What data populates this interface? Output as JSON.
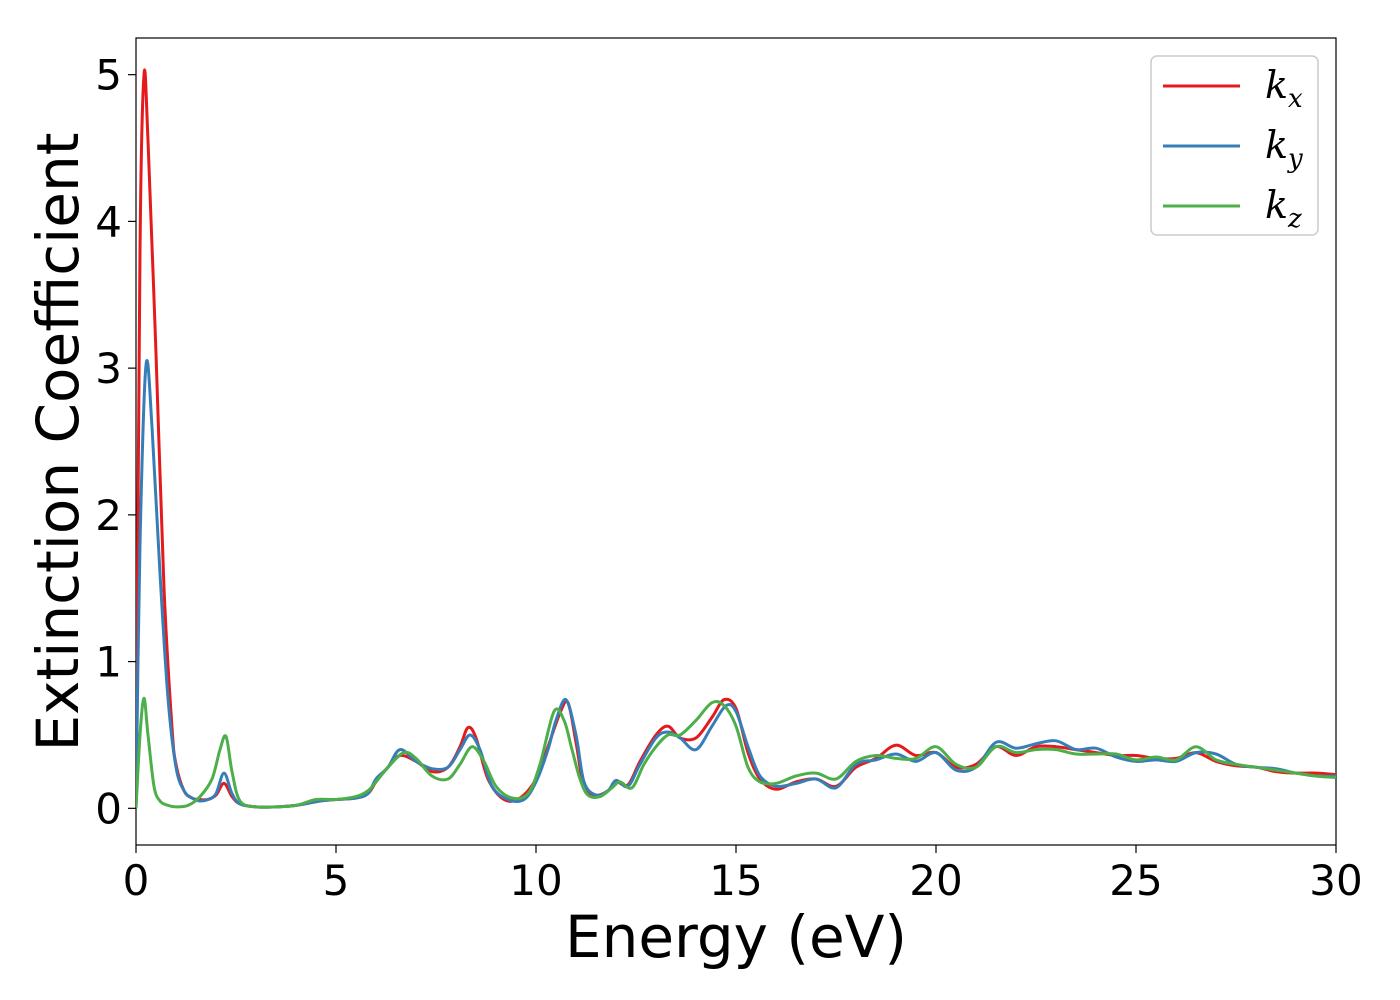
{
  "chart_data": {
    "type": "line",
    "title": "",
    "xlabel": "Energy (eV)",
    "ylabel": "Extinction Coefficient",
    "xlim": [
      0,
      30
    ],
    "ylim": [
      -0.25,
      5.25
    ],
    "xticks": [
      0,
      5,
      10,
      15,
      20,
      25,
      30
    ],
    "yticks": [
      0,
      1,
      2,
      3,
      4,
      5
    ],
    "grid": false,
    "legend_position": "top-right",
    "series": [
      {
        "name": "k",
        "subscript": "x",
        "color": "#e41a1c",
        "x": [
          0,
          0.1,
          0.2,
          0.3,
          0.5,
          0.7,
          0.9,
          1.0,
          1.2,
          1.4,
          1.6,
          1.8,
          2.0,
          2.2,
          2.4,
          2.6,
          3.0,
          3.5,
          4.0,
          4.6,
          5.0,
          5.5,
          5.8,
          6.0,
          6.3,
          6.6,
          7.0,
          7.4,
          7.8,
          8.1,
          8.3,
          8.5,
          8.8,
          9.2,
          9.6,
          10.0,
          10.3,
          10.6,
          10.8,
          11.0,
          11.2,
          11.5,
          11.8,
          12.0,
          12.3,
          12.6,
          13.0,
          13.3,
          13.6,
          14.0,
          14.4,
          14.7,
          15.0,
          15.3,
          15.6,
          16.0,
          16.5,
          17.0,
          17.5,
          18.0,
          18.5,
          19.0,
          19.5,
          20.0,
          20.5,
          21.0,
          21.5,
          22.0,
          22.5,
          23.0,
          23.5,
          24.0,
          24.5,
          25.0,
          25.5,
          26.0,
          26.5,
          27.0,
          27.5,
          28.0,
          28.5,
          29.0,
          29.5,
          30.0
        ],
        "y": [
          0.0,
          3.8,
          5.0,
          4.55,
          3.1,
          1.5,
          0.55,
          0.3,
          0.12,
          0.07,
          0.06,
          0.06,
          0.09,
          0.17,
          0.08,
          0.03,
          0.01,
          0.01,
          0.02,
          0.05,
          0.06,
          0.07,
          0.1,
          0.18,
          0.28,
          0.36,
          0.32,
          0.25,
          0.28,
          0.42,
          0.55,
          0.48,
          0.2,
          0.06,
          0.07,
          0.2,
          0.42,
          0.65,
          0.72,
          0.45,
          0.15,
          0.09,
          0.12,
          0.18,
          0.16,
          0.32,
          0.5,
          0.56,
          0.48,
          0.48,
          0.62,
          0.74,
          0.68,
          0.38,
          0.2,
          0.13,
          0.18,
          0.2,
          0.15,
          0.28,
          0.34,
          0.43,
          0.36,
          0.38,
          0.28,
          0.3,
          0.42,
          0.36,
          0.42,
          0.42,
          0.4,
          0.38,
          0.36,
          0.36,
          0.34,
          0.34,
          0.38,
          0.32,
          0.29,
          0.28,
          0.25,
          0.24,
          0.24,
          0.23
        ]
      },
      {
        "name": "k",
        "subscript": "y",
        "color": "#377eb8",
        "x": [
          0,
          0.1,
          0.25,
          0.4,
          0.6,
          0.8,
          1.0,
          1.2,
          1.4,
          1.6,
          1.8,
          2.0,
          2.2,
          2.4,
          2.6,
          3.0,
          3.5,
          4.0,
          4.6,
          5.0,
          5.5,
          5.8,
          6.0,
          6.3,
          6.6,
          7.0,
          7.4,
          7.8,
          8.1,
          8.35,
          8.6,
          8.9,
          9.3,
          9.7,
          10.0,
          10.3,
          10.5,
          10.75,
          11.0,
          11.2,
          11.5,
          11.8,
          12.0,
          12.3,
          12.6,
          13.0,
          13.3,
          13.6,
          14.0,
          14.4,
          14.75,
          15.0,
          15.3,
          15.6,
          16.0,
          16.5,
          17.0,
          17.5,
          18.0,
          18.5,
          19.0,
          19.5,
          20.0,
          20.5,
          21.0,
          21.5,
          22.0,
          22.5,
          23.0,
          23.5,
          24.0,
          24.5,
          25.0,
          25.5,
          26.0,
          26.5,
          27.0,
          27.5,
          28.0,
          28.5,
          29.0,
          29.5,
          30.0
        ],
        "y": [
          0.0,
          1.8,
          3.02,
          2.6,
          1.6,
          0.75,
          0.28,
          0.12,
          0.07,
          0.05,
          0.06,
          0.1,
          0.24,
          0.1,
          0.03,
          0.01,
          0.01,
          0.02,
          0.05,
          0.06,
          0.07,
          0.1,
          0.2,
          0.28,
          0.4,
          0.32,
          0.27,
          0.28,
          0.4,
          0.5,
          0.4,
          0.15,
          0.06,
          0.06,
          0.18,
          0.4,
          0.6,
          0.74,
          0.5,
          0.18,
          0.09,
          0.12,
          0.19,
          0.15,
          0.3,
          0.48,
          0.52,
          0.48,
          0.4,
          0.56,
          0.7,
          0.66,
          0.42,
          0.22,
          0.15,
          0.17,
          0.2,
          0.14,
          0.3,
          0.33,
          0.37,
          0.32,
          0.38,
          0.26,
          0.28,
          0.45,
          0.41,
          0.44,
          0.46,
          0.4,
          0.41,
          0.35,
          0.32,
          0.33,
          0.32,
          0.38,
          0.37,
          0.3,
          0.28,
          0.27,
          0.24,
          0.22,
          0.22
        ]
      },
      {
        "name": "k",
        "subscript": "z",
        "color": "#4daf4a",
        "x": [
          0,
          0.1,
          0.2,
          0.3,
          0.45,
          0.6,
          0.8,
          1.0,
          1.3,
          1.6,
          1.9,
          2.1,
          2.25,
          2.4,
          2.6,
          3.0,
          3.5,
          4.0,
          4.5,
          5.0,
          5.5,
          5.8,
          6.0,
          6.3,
          6.7,
          7.0,
          7.4,
          7.8,
          8.1,
          8.4,
          8.7,
          9.0,
          9.4,
          9.8,
          10.1,
          10.45,
          10.7,
          10.9,
          11.1,
          11.3,
          11.6,
          11.9,
          12.1,
          12.4,
          12.7,
          13.0,
          13.3,
          13.6,
          14.0,
          14.4,
          14.7,
          15.0,
          15.3,
          15.6,
          16.0,
          16.5,
          17.0,
          17.5,
          18.0,
          18.5,
          19.0,
          19.5,
          20.0,
          20.5,
          21.0,
          21.5,
          22.0,
          22.5,
          23.0,
          23.5,
          24.0,
          24.5,
          25.0,
          25.5,
          26.0,
          26.5,
          27.0,
          27.5,
          28.0,
          28.5,
          29.0,
          29.5,
          30.0
        ],
        "y": [
          0.0,
          0.5,
          0.75,
          0.5,
          0.15,
          0.05,
          0.02,
          0.01,
          0.02,
          0.08,
          0.2,
          0.4,
          0.49,
          0.25,
          0.05,
          0.01,
          0.01,
          0.02,
          0.06,
          0.06,
          0.08,
          0.12,
          0.18,
          0.28,
          0.38,
          0.34,
          0.22,
          0.2,
          0.3,
          0.42,
          0.32,
          0.15,
          0.07,
          0.1,
          0.3,
          0.66,
          0.6,
          0.4,
          0.2,
          0.09,
          0.08,
          0.14,
          0.18,
          0.14,
          0.3,
          0.42,
          0.5,
          0.5,
          0.6,
          0.72,
          0.7,
          0.56,
          0.28,
          0.18,
          0.17,
          0.22,
          0.24,
          0.2,
          0.32,
          0.36,
          0.34,
          0.34,
          0.42,
          0.3,
          0.28,
          0.42,
          0.38,
          0.4,
          0.4,
          0.37,
          0.37,
          0.37,
          0.33,
          0.35,
          0.33,
          0.42,
          0.33,
          0.3,
          0.28,
          0.26,
          0.24,
          0.22,
          0.21
        ]
      }
    ]
  }
}
